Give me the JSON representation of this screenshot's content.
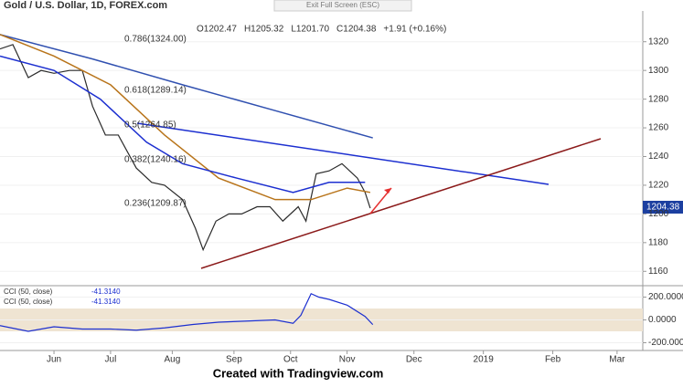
{
  "exit_button": "Exit Full Screen (ESC)",
  "footer": "Created with Tradingview.com",
  "chart_data": [
    {
      "type": "line",
      "title": "Gold / U.S. Dollar, 1D, FOREX.com",
      "ohlc": [
        "O1202.47",
        "H1205.32",
        "L1201.70",
        "C1204.38",
        "+1.91 (+0.16%)"
      ],
      "last_price_label": "1204.38",
      "fib_labels": [
        "0.786(1324.00)",
        "0.618(1289.14)",
        "0.5(1264.85)",
        "0.382(1240.16)",
        "0.236(1209.87)"
      ],
      "xlim": [
        0,
        250
      ],
      "xticks": [
        {
          "value": 21,
          "label": "Jun"
        },
        {
          "value": 43,
          "label": "Jul"
        },
        {
          "value": 67,
          "label": "Aug"
        },
        {
          "value": 91,
          "label": "Sep"
        },
        {
          "value": 113,
          "label": "Oct"
        },
        {
          "value": 135,
          "label": "Nov"
        },
        {
          "value": 161,
          "label": "Dec"
        },
        {
          "value": 188,
          "label": "2019"
        },
        {
          "value": 215,
          "label": "Feb"
        },
        {
          "value": 240,
          "label": "Mar"
        }
      ],
      "ylim": [
        1150,
        1330
      ],
      "yticks": [
        1160,
        1180,
        1200,
        1220,
        1240,
        1260,
        1280,
        1300,
        1320
      ],
      "series": [
        {
          "color": "#2b2b2b",
          "x": [
            0,
            5,
            11,
            16,
            21,
            27,
            32,
            36,
            41,
            46,
            53,
            59,
            64,
            71,
            76,
            79,
            84,
            89,
            94,
            100,
            105,
            110,
            116,
            119,
            123,
            128,
            133,
            139,
            142,
            144
          ],
          "values": [
            1315,
            1318,
            1295,
            1300,
            1298,
            1300,
            1300,
            1275,
            1255,
            1255,
            1232,
            1222,
            1220,
            1210,
            1190,
            1175,
            1195,
            1200,
            1200,
            1205,
            1205,
            1195,
            1205,
            1195,
            1228,
            1230,
            1235,
            1225,
            1215,
            1204
          ]
        },
        {
          "color": "#3050b0",
          "x": [
            0,
            36,
            71,
            107,
            145
          ],
          "values": [
            1325,
            1308,
            1290,
            1272,
            1253
          ]
        },
        {
          "color": "#b8741a",
          "x": [
            0,
            21,
            43,
            64,
            85,
            107,
            121,
            135,
            144
          ],
          "values": [
            1325,
            1310,
            1290,
            1255,
            1225,
            1210,
            1210,
            1218,
            1215
          ]
        },
        {
          "color": "#1c2fd0",
          "x": [
            0,
            21,
            39,
            57,
            71,
            92,
            114,
            128,
            142
          ],
          "values": [
            1310,
            1300,
            1280,
            1250,
            1235,
            1225,
            1215,
            1222,
            1222
          ]
        }
      ]
    },
    {
      "type": "line",
      "indicators": [
        "CCI (50, close)",
        "CCI (50, close)"
      ],
      "indicator_values": [
        "-41.3140",
        "-41.3140"
      ],
      "xlim": [
        0,
        250
      ],
      "ylim": [
        -260,
        300
      ],
      "yticks": [
        {
          "value": 200,
          "label": "200.0000"
        },
        {
          "value": 0,
          "label": "0.0000"
        },
        {
          "value": -200,
          "label": "-200.0000"
        }
      ],
      "band": [
        -100,
        100
      ],
      "series": [
        {
          "color": "#1c2fd0",
          "x": [
            0,
            11,
            21,
            32,
            43,
            53,
            64,
            75,
            85,
            96,
            107,
            114,
            117,
            121,
            124,
            128,
            135,
            142,
            145
          ],
          "values": [
            -50,
            -100,
            -60,
            -80,
            -80,
            -90,
            -70,
            -40,
            -20,
            -10,
            0,
            -30,
            40,
            230,
            200,
            180,
            130,
            30,
            -41
          ]
        }
      ]
    }
  ]
}
